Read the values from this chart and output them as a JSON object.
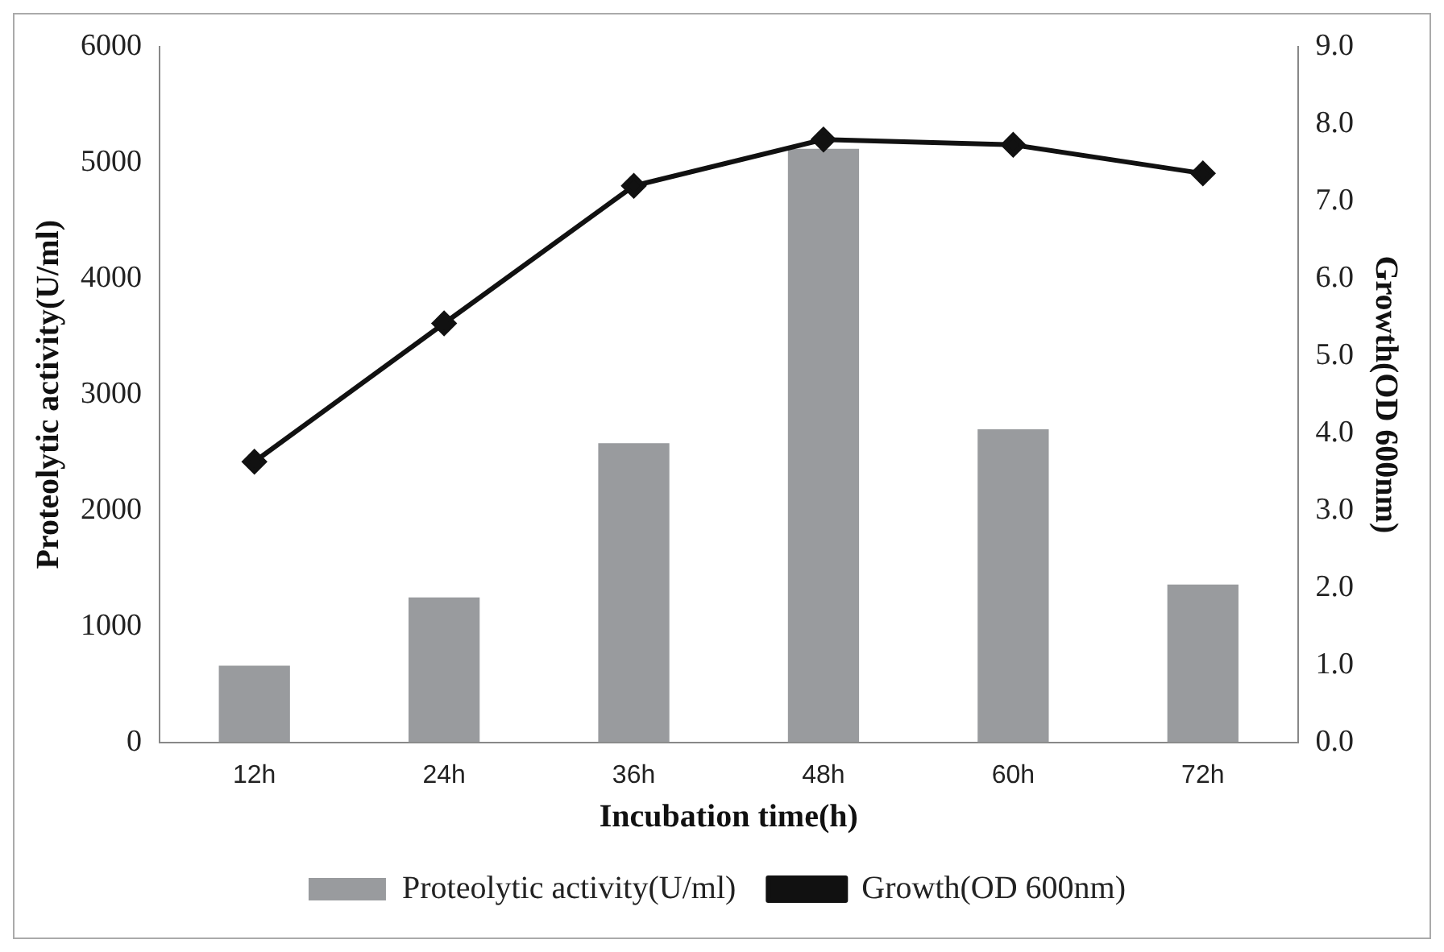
{
  "chart_data": {
    "type": "bar",
    "xlabel": "Incubation time(h)",
    "ylabel": "Proteolytic activity(U/ml)",
    "y2label": "Growth(OD 600nm)",
    "categories": [
      "12h",
      "24h",
      "36h",
      "48h",
      "60h",
      "72h"
    ],
    "series": [
      {
        "name": "Proteolytic activity(U/ml)",
        "color": "#999b9e",
        "values": [
          660,
          1250,
          2580,
          5120,
          2700,
          1360
        ]
      },
      {
        "name": "Growth(OD 600nm)",
        "type": "line",
        "axis": "y2",
        "color": "#111111",
        "marker": "diamond",
        "values": [
          3.63,
          5.42,
          7.2,
          7.8,
          7.73,
          7.36
        ]
      }
    ],
    "ylim": [
      0,
      6000
    ],
    "yticks": [
      0,
      1000,
      2000,
      3000,
      4000,
      5000,
      6000
    ],
    "y2lim": [
      0,
      9
    ],
    "y2ticks": [
      {
        "value": 0,
        "label": "0.0"
      },
      {
        "value": 1,
        "label": "1.0"
      },
      {
        "value": 2,
        "label": "2.0"
      },
      {
        "value": 3,
        "label": "3.0"
      },
      {
        "value": 4,
        "label": "4.0"
      },
      {
        "value": 5,
        "label": "5.0"
      },
      {
        "value": 6,
        "label": "6.0"
      },
      {
        "value": 7,
        "label": "7.0"
      },
      {
        "value": 8,
        "label": "8.0"
      },
      {
        "value": 9,
        "label": "9.0"
      }
    ],
    "grid": false,
    "legend": "bottom"
  }
}
